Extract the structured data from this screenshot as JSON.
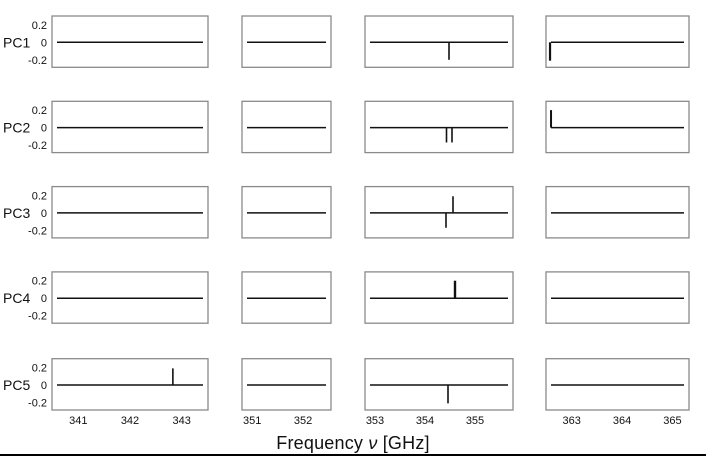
{
  "figure": {
    "xlabel_prefix": "Frequency ",
    "xlabel_symbol": "ν",
    "xlabel_suffix": " [GHz]"
  },
  "chart_data": {
    "type": "line",
    "title": "",
    "xlabel": "Frequency ν [GHz]",
    "ylabel": "",
    "grid": false,
    "legend": "none",
    "row_labels": [
      "PC1",
      "PC2",
      "PC3",
      "PC4",
      "PC5"
    ],
    "yticks": [
      0.2,
      0,
      -0.2
    ],
    "ytick_labels": [
      "0.2",
      "0",
      "-0.2"
    ],
    "ylim": [
      -0.29,
      0.3
    ],
    "columns": [
      {
        "xlim": [
          340.49,
          343.51
        ],
        "ticks": [
          341,
          342,
          343
        ],
        "tick_labels": [
          "341",
          "342",
          "343"
        ]
      },
      {
        "xlim": [
          350.8,
          352.55
        ],
        "ticks": [
          351,
          352
        ],
        "tick_labels": [
          "351",
          "352"
        ]
      },
      {
        "xlim": [
          352.8,
          355.76
        ],
        "ticks": [
          353,
          354,
          355
        ],
        "tick_labels": [
          "353",
          "354",
          "355"
        ]
      },
      {
        "xlim": [
          362.49,
          365.33
        ],
        "ticks": [
          363,
          364,
          365
        ],
        "tick_labels": [
          "363",
          "364",
          "365"
        ]
      }
    ],
    "baseline_value": 0,
    "panels": [
      [
        {
          "spikes": []
        },
        {
          "spikes": []
        },
        {
          "spikes": [
            {
              "x": 354.48,
              "v": -0.2
            }
          ]
        },
        {
          "spikes": [
            {
              "x": 362.57,
              "v": -0.21,
              "w": 2.2
            }
          ]
        }
      ],
      [
        {
          "spikes": []
        },
        {
          "spikes": []
        },
        {
          "spikes": [
            {
              "x": 354.43,
              "v": -0.17
            },
            {
              "x": 354.54,
              "v": -0.17
            }
          ]
        },
        {
          "spikes": [
            {
              "x": 362.59,
              "v": 0.2,
              "w": 2.0
            }
          ]
        }
      ],
      [
        {
          "spikes": []
        },
        {
          "spikes": []
        },
        {
          "spikes": [
            {
              "x": 354.42,
              "v": -0.17
            },
            {
              "x": 354.56,
              "v": 0.19
            }
          ]
        },
        {
          "spikes": []
        }
      ],
      [
        {
          "spikes": []
        },
        {
          "spikes": []
        },
        {
          "spikes": [
            {
              "x": 354.6,
              "v": 0.2,
              "w": 2.4
            }
          ]
        },
        {
          "spikes": []
        }
      ],
      [
        {
          "spikes": [
            {
              "x": 342.83,
              "v": 0.19
            }
          ]
        },
        {
          "spikes": []
        },
        {
          "spikes": [
            {
              "x": 354.46,
              "v": -0.21
            }
          ]
        },
        {
          "spikes": []
        }
      ]
    ],
    "colors": {
      "line": "#111111",
      "panel_border": "#8a8a8a",
      "text": "#111111",
      "background": "#ffffff",
      "bottom_rule": "#000000"
    }
  }
}
